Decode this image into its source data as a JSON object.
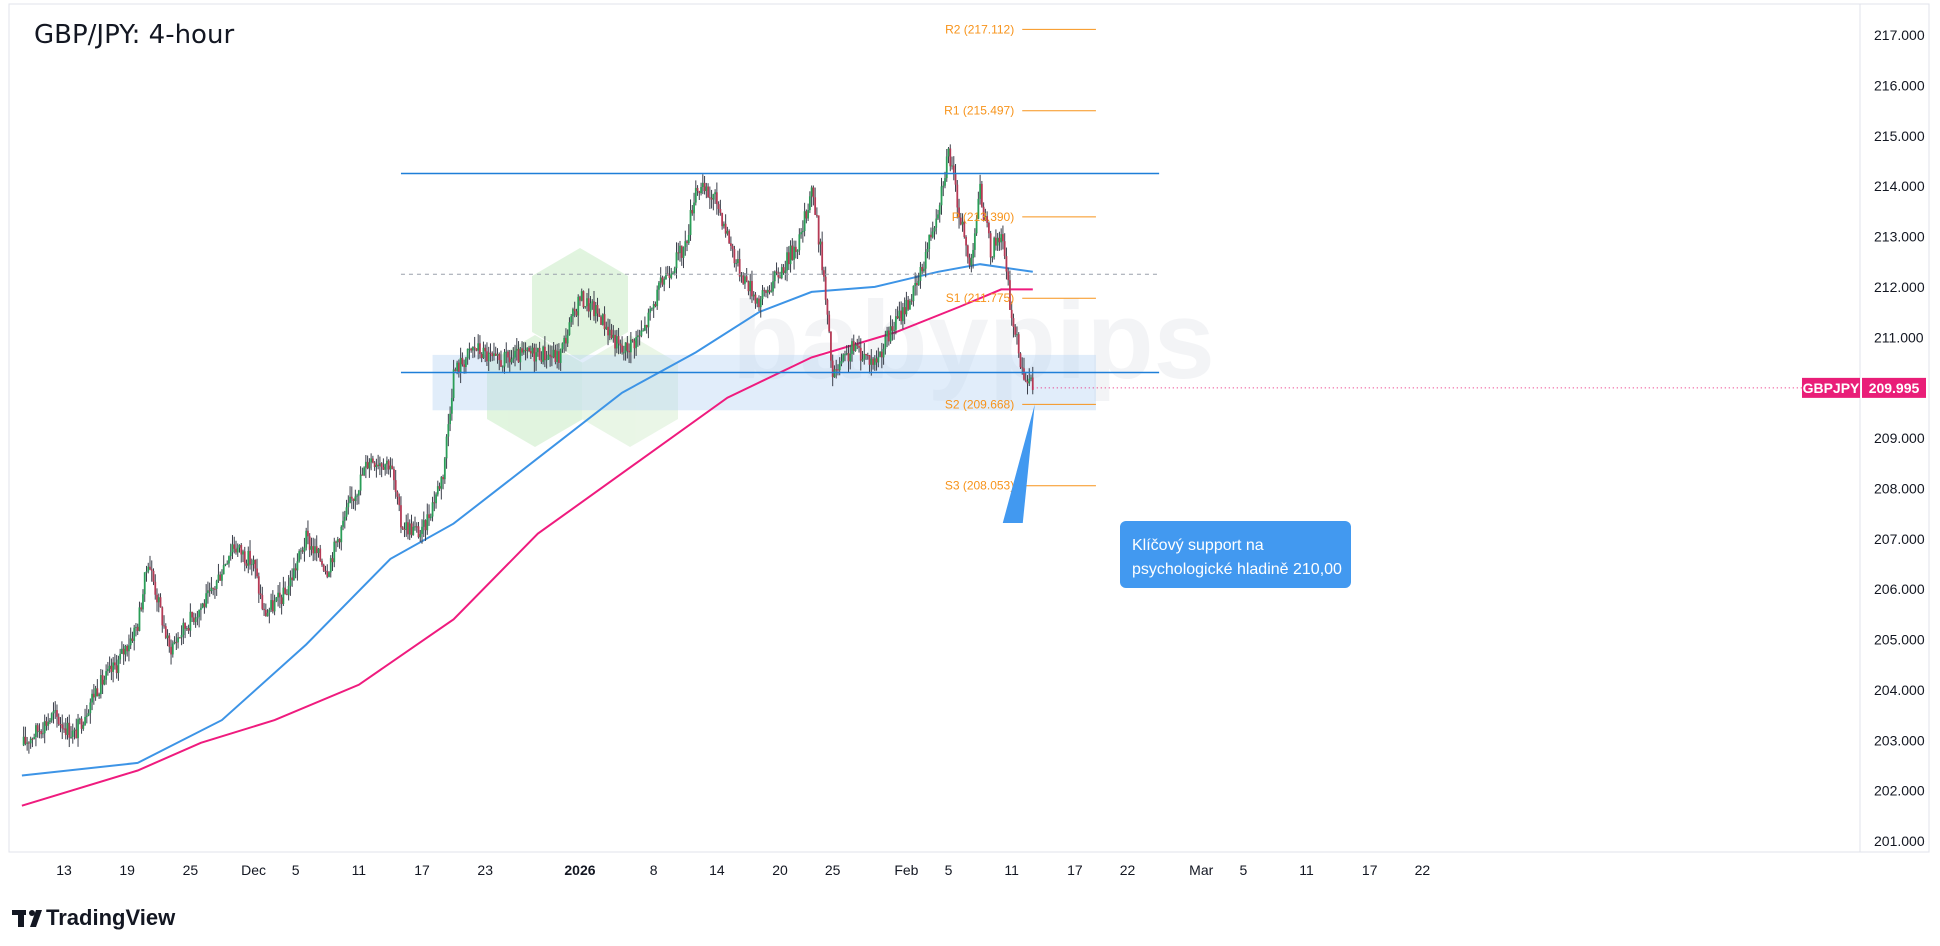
{
  "chart_data": {
    "type": "candlestick",
    "title": "GBP/JPY: 4-hour",
    "symbol": "GBPJPY",
    "last_price": "209.995",
    "y_range": [
      200.7,
      217.6
    ],
    "y_ticks": [
      "201.000",
      "202.000",
      "203.000",
      "204.000",
      "205.000",
      "206.000",
      "207.000",
      "208.000",
      "209.000",
      "210.000",
      "211.000",
      "212.000",
      "213.000",
      "214.000",
      "215.000",
      "216.000",
      "217.000"
    ],
    "x_ticks": [
      {
        "label": "13",
        "date": "2025-11-13"
      },
      {
        "label": "19",
        "date": "2025-11-19"
      },
      {
        "label": "25",
        "date": "2025-11-25"
      },
      {
        "label": "Dec",
        "date": "2025-12-01"
      },
      {
        "label": "5",
        "date": "2025-12-05"
      },
      {
        "label": "11",
        "date": "2025-12-11"
      },
      {
        "label": "17",
        "date": "2025-12-17"
      },
      {
        "label": "23",
        "date": "2025-12-23"
      },
      {
        "label": "2026",
        "date": "2026-01-01",
        "bold": true
      },
      {
        "label": "8",
        "date": "2026-01-08"
      },
      {
        "label": "14",
        "date": "2026-01-14"
      },
      {
        "label": "20",
        "date": "2026-01-20"
      },
      {
        "label": "25",
        "date": "2026-01-25"
      },
      {
        "label": "Feb",
        "date": "2026-02-01"
      },
      {
        "label": "5",
        "date": "2026-02-05"
      },
      {
        "label": "11",
        "date": "2026-02-11"
      },
      {
        "label": "17",
        "date": "2026-02-17"
      },
      {
        "label": "22",
        "date": "2026-02-22"
      },
      {
        "label": "Mar",
        "date": "2026-03-01"
      },
      {
        "label": "5",
        "date": "2026-03-05"
      },
      {
        "label": "11",
        "date": "2026-03-11"
      },
      {
        "label": "17",
        "date": "2026-03-17"
      },
      {
        "label": "22",
        "date": "2026-03-22"
      }
    ],
    "price_path": [
      [
        "2025-11-09",
        202.9
      ],
      [
        "2025-11-12",
        203.5
      ],
      [
        "2025-11-14",
        203.1
      ],
      [
        "2025-11-16",
        204.0
      ],
      [
        "2025-11-18",
        204.5
      ],
      [
        "2025-11-20",
        205.3
      ],
      [
        "2025-11-21",
        206.6
      ],
      [
        "2025-11-23",
        204.8
      ],
      [
        "2025-11-25",
        205.4
      ],
      [
        "2025-11-27",
        205.9
      ],
      [
        "2025-11-29",
        206.9
      ],
      [
        "2025-12-01",
        206.5
      ],
      [
        "2025-12-02",
        205.5
      ],
      [
        "2025-12-04",
        205.9
      ],
      [
        "2025-12-06",
        207.0
      ],
      [
        "2025-12-08",
        206.4
      ],
      [
        "2025-12-10",
        207.6
      ],
      [
        "2025-12-12",
        208.6
      ],
      [
        "2025-12-14",
        208.5
      ],
      [
        "2025-12-15",
        207.3
      ],
      [
        "2025-12-17",
        207.1
      ],
      [
        "2025-12-19",
        208.3
      ],
      [
        "2025-12-20",
        210.3
      ],
      [
        "2025-12-22",
        210.8
      ],
      [
        "2025-12-24",
        210.5
      ],
      [
        "2025-12-26",
        210.6
      ],
      [
        "2025-12-28",
        210.7
      ],
      [
        "2025-12-30",
        210.6
      ],
      [
        "2026-01-01",
        211.8
      ],
      [
        "2026-01-03",
        211.4
      ],
      [
        "2026-01-05",
        210.7
      ],
      [
        "2026-01-07",
        211.1
      ],
      [
        "2026-01-09",
        212.2
      ],
      [
        "2026-01-11",
        212.8
      ],
      [
        "2026-01-12",
        214.0
      ],
      [
        "2026-01-14",
        213.7
      ],
      [
        "2026-01-16",
        212.4
      ],
      [
        "2026-01-18",
        211.7
      ],
      [
        "2026-01-20",
        212.3
      ],
      [
        "2026-01-22",
        213.0
      ],
      [
        "2026-01-23",
        214.0
      ],
      [
        "2026-01-24",
        212.5
      ],
      [
        "2026-01-25",
        210.2
      ],
      [
        "2026-01-27",
        210.8
      ],
      [
        "2026-01-29",
        210.5
      ],
      [
        "2026-01-31",
        211.3
      ],
      [
        "2026-02-02",
        212.0
      ],
      [
        "2026-02-04",
        213.6
      ],
      [
        "2026-02-05",
        214.7
      ],
      [
        "2026-02-06",
        213.5
      ],
      [
        "2026-02-07",
        212.4
      ],
      [
        "2026-02-08",
        213.9
      ],
      [
        "2026-02-09",
        212.7
      ],
      [
        "2026-02-10",
        213.1
      ],
      [
        "2026-02-11",
        211.4
      ],
      [
        "2026-02-12",
        210.4
      ],
      [
        "2026-02-13",
        209.995
      ]
    ],
    "ma_blue": [
      [
        "2025-11-09",
        202.3
      ],
      [
        "2025-11-20",
        202.55
      ],
      [
        "2025-11-28",
        203.4
      ],
      [
        "2025-12-06",
        204.9
      ],
      [
        "2025-12-14",
        206.6
      ],
      [
        "2025-12-20",
        207.3
      ],
      [
        "2025-12-28",
        208.6
      ],
      [
        "2026-01-05",
        209.9
      ],
      [
        "2026-01-12",
        210.7
      ],
      [
        "2026-01-18",
        211.5
      ],
      [
        "2026-01-23",
        211.9
      ],
      [
        "2026-01-29",
        212.0
      ],
      [
        "2026-02-04",
        212.3
      ],
      [
        "2026-02-08",
        212.45
      ],
      [
        "2026-02-13",
        212.3
      ]
    ],
    "ma_pink": [
      [
        "2025-11-09",
        201.7
      ],
      [
        "2025-11-20",
        202.4
      ],
      [
        "2025-11-26",
        202.95
      ],
      [
        "2025-12-03",
        203.4
      ],
      [
        "2025-12-11",
        204.1
      ],
      [
        "2025-12-20",
        205.4
      ],
      [
        "2025-12-28",
        207.1
      ],
      [
        "2026-01-07",
        208.6
      ],
      [
        "2026-01-15",
        209.8
      ],
      [
        "2026-01-23",
        210.6
      ],
      [
        "2026-01-31",
        211.1
      ],
      [
        "2026-02-06",
        211.6
      ],
      [
        "2026-02-10",
        211.95
      ],
      [
        "2026-02-13",
        211.95
      ]
    ],
    "range_top": 214.25,
    "range_bottom": 210.3,
    "range_mid": 212.25,
    "range_start": "2025-12-15",
    "range_end": "2026-02-25",
    "support_zone": {
      "from": 209.55,
      "to": 210.65,
      "start": "2025-12-18",
      "end": "2026-02-19"
    },
    "pivots": [
      {
        "label": "R2 (217.112)",
        "value": 217.112
      },
      {
        "label": "R1 (215.497)",
        "value": 215.497
      },
      {
        "label": "P (213.390)",
        "value": 213.39
      },
      {
        "label": "S1 (211.775)",
        "value": 211.775
      },
      {
        "label": "S2 (209.668)",
        "value": 209.668
      },
      {
        "label": "S3 (208.053)",
        "value": 208.053
      }
    ],
    "pivot_line_start": "2026-02-12",
    "pivot_line_end": "2026-02-19",
    "annotation": {
      "lines": [
        "Klíčový support na",
        "psychologické hladině 210,00"
      ],
      "point_date": "2026-02-13",
      "point_value": 209.668
    },
    "watermark": "babypips"
  },
  "branding": {
    "name": "TradingView"
  }
}
